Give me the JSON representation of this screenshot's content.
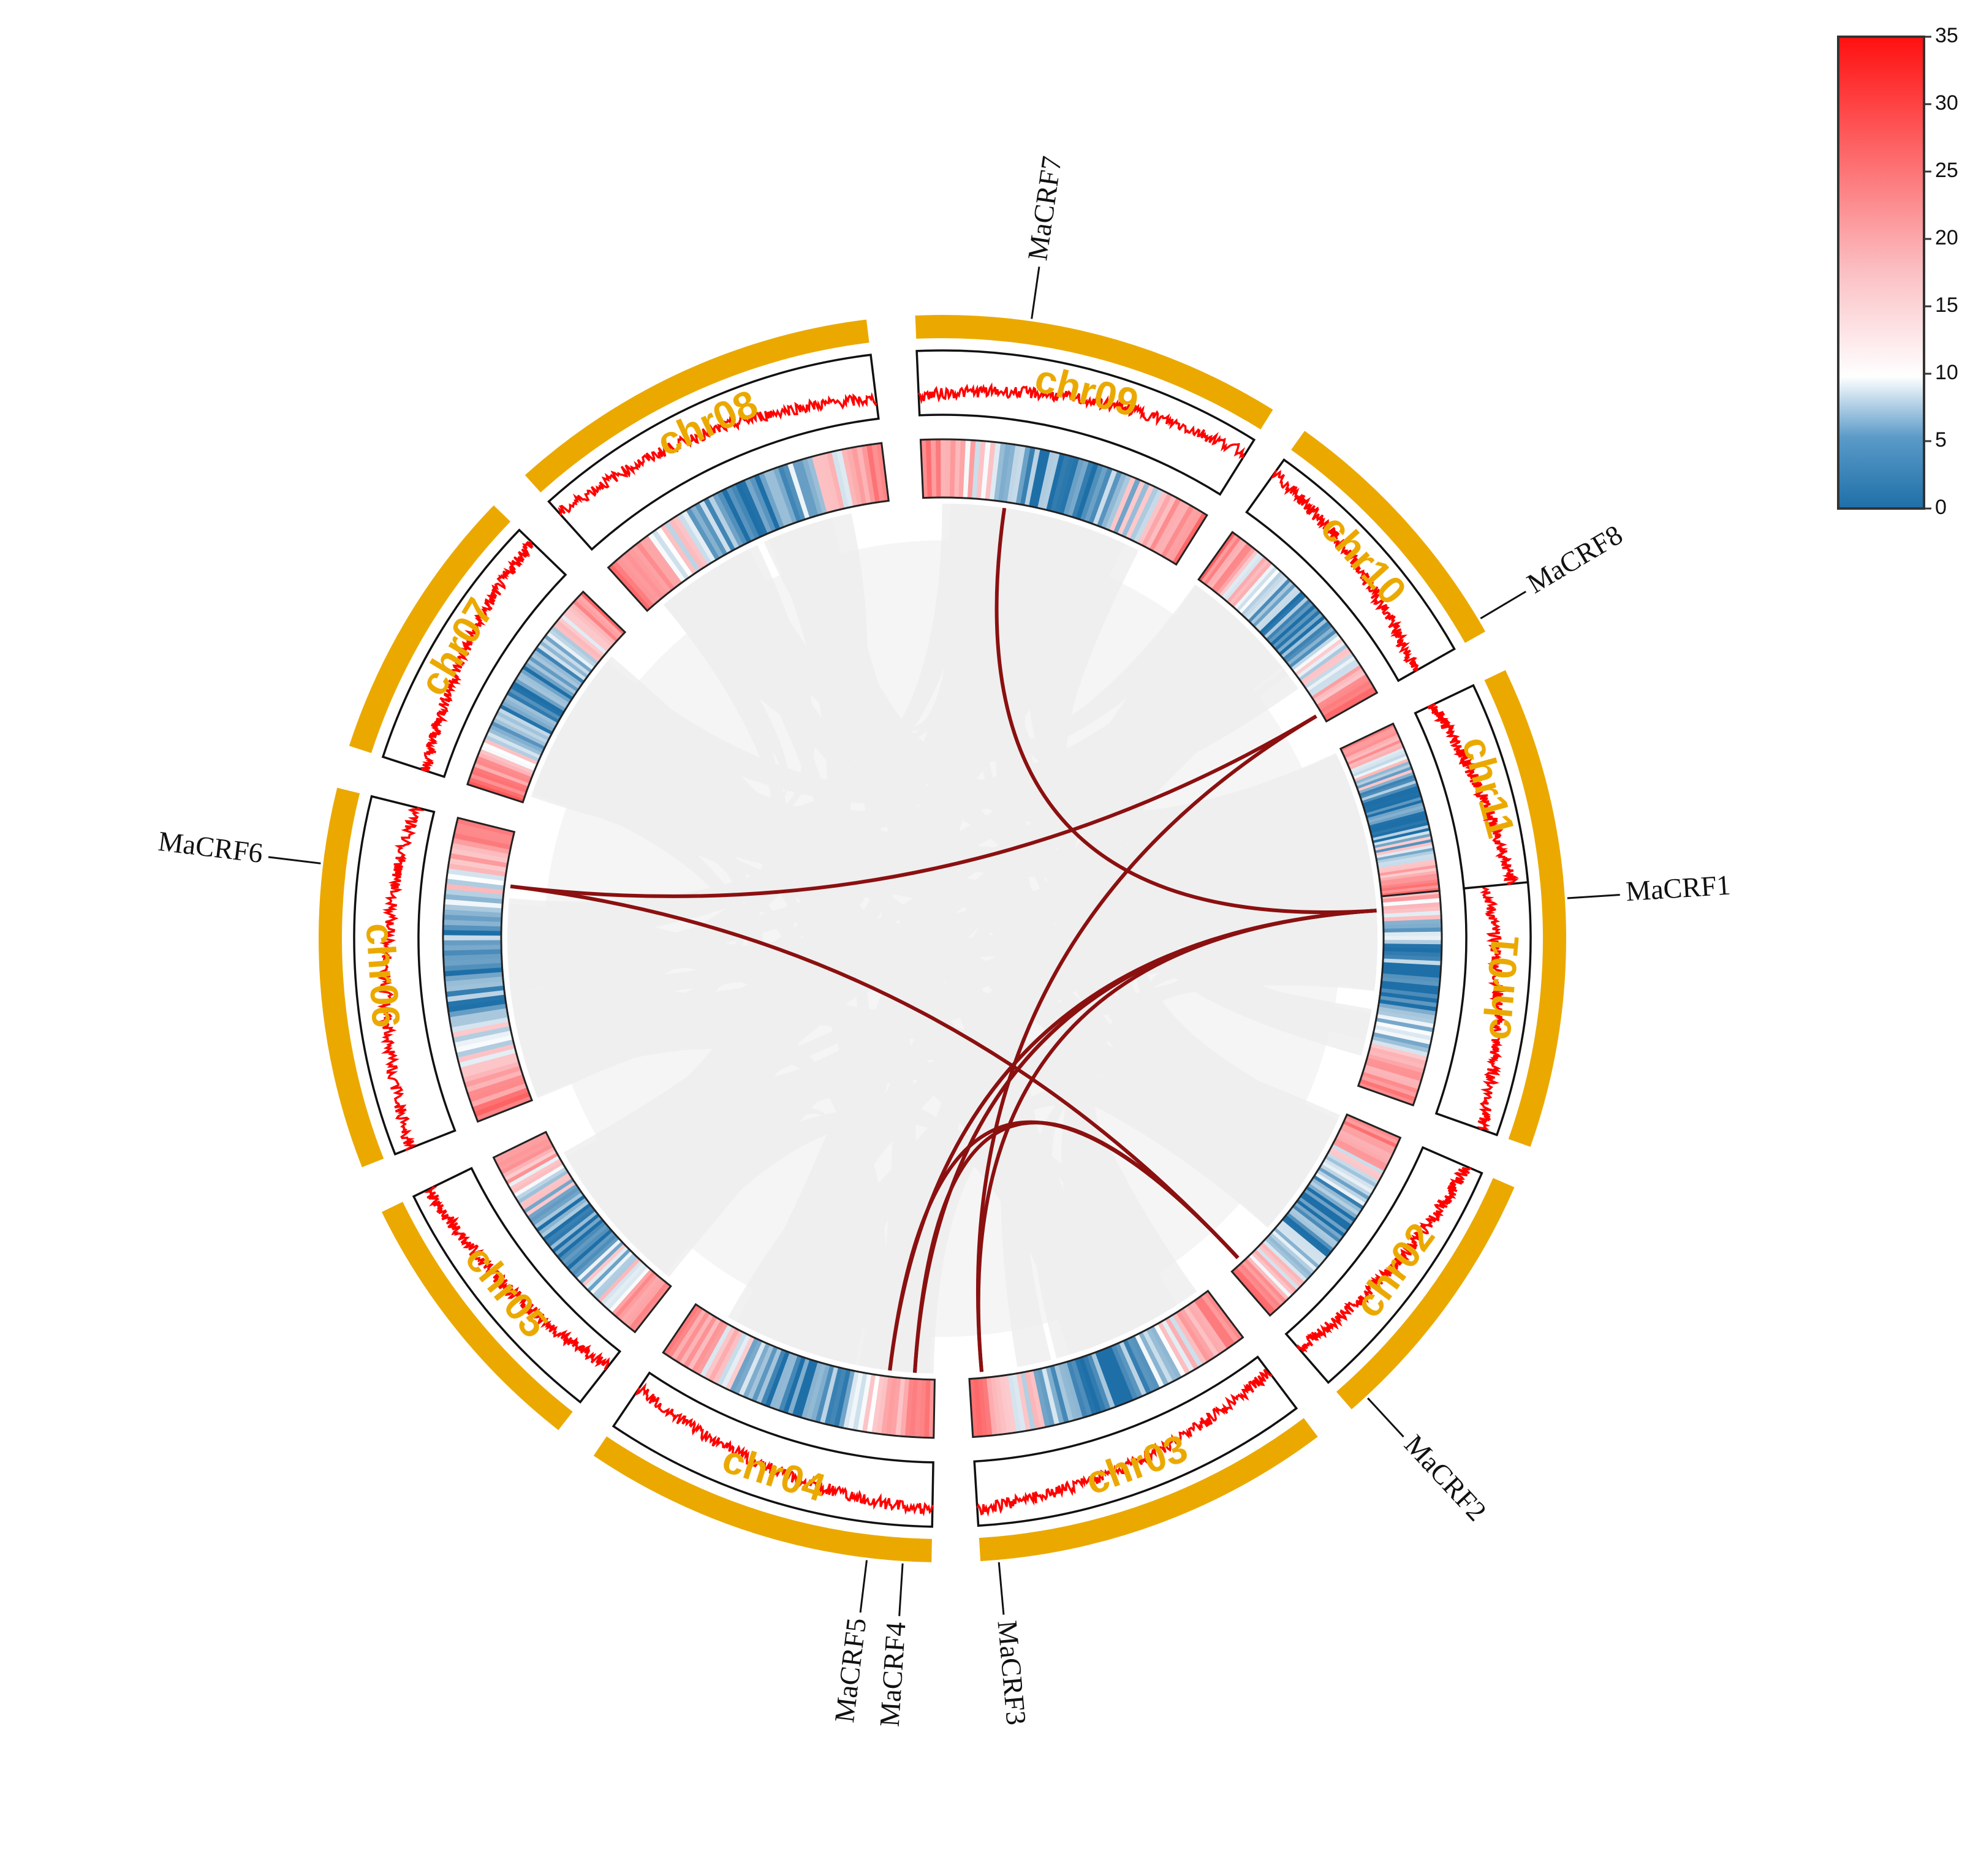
{
  "colors": {
    "chromosome": "#EBA900",
    "density_line": "#FF0000",
    "link_collinear": "#8B1010",
    "link_background": "#EEEEEE",
    "heat_low": "#1E6FA8",
    "heat_mid": "#FFFFFF",
    "heat_high": "#FF1010"
  },
  "chromosomes": [
    {
      "name": "chr01",
      "start_deg": 80.5,
      "end_deg": 109.5
    },
    {
      "name": "chr02",
      "start_deg": 113.5,
      "end_deg": 139.0
    },
    {
      "name": "chr03",
      "start_deg": 143.0,
      "end_deg": 176.5
    },
    {
      "name": "chr04",
      "start_deg": 181.0,
      "end_deg": 214.0
    },
    {
      "name": "chr05",
      "start_deg": 218.0,
      "end_deg": 244.0
    },
    {
      "name": "chr06",
      "start_deg": 248.5,
      "end_deg": 284.0
    },
    {
      "name": "chr07",
      "start_deg": 288.0,
      "end_deg": 314.0
    },
    {
      "name": "chr08",
      "start_deg": 318.0,
      "end_deg": 353.0
    },
    {
      "name": "chr09",
      "start_deg": 357.5,
      "end_deg": 392.0
    },
    {
      "name": "chr10",
      "start_deg": 395.5,
      "end_deg": 420.5
    },
    {
      "name": "chr11",
      "start_deg": 424.5,
      "end_deg": 444.5
    }
  ],
  "genes": [
    {
      "name": "MaCRF1",
      "chr": "chr01",
      "pos": 0.2
    },
    {
      "name": "MaCRF2",
      "chr": "chr02",
      "pos": 0.93
    },
    {
      "name": "MaCRF3",
      "chr": "chr03",
      "pos": 0.95
    },
    {
      "name": "MaCRF4",
      "chr": "chr04",
      "pos": 0.08
    },
    {
      "name": "MaCRF5",
      "chr": "chr04",
      "pos": 0.18
    },
    {
      "name": "MaCRF6",
      "chr": "chr06",
      "pos": 0.8
    },
    {
      "name": "MaCRF7",
      "chr": "chr09",
      "pos": 0.31
    },
    {
      "name": "MaCRF8",
      "chr": "chr10",
      "pos": 0.95
    }
  ],
  "duplication_links": [
    [
      "MaCRF7",
      "MaCRF1"
    ],
    [
      "MaCRF8",
      "MaCRF6"
    ],
    [
      "MaCRF8",
      "MaCRF3"
    ],
    [
      "MaCRF6",
      "MaCRF2"
    ],
    [
      "MaCRF1",
      "MaCRF5"
    ],
    [
      "MaCRF1",
      "MaCRF4"
    ],
    [
      "MaCRF1",
      "MaCRF3"
    ],
    [
      "MaCRF2",
      "MaCRF4"
    ],
    [
      "MaCRF2",
      "MaCRF5"
    ]
  ],
  "legend": {
    "ticks": [
      "0",
      "5",
      "10",
      "15",
      "20",
      "25",
      "30",
      "35"
    ],
    "min": 0,
    "max": 35
  }
}
